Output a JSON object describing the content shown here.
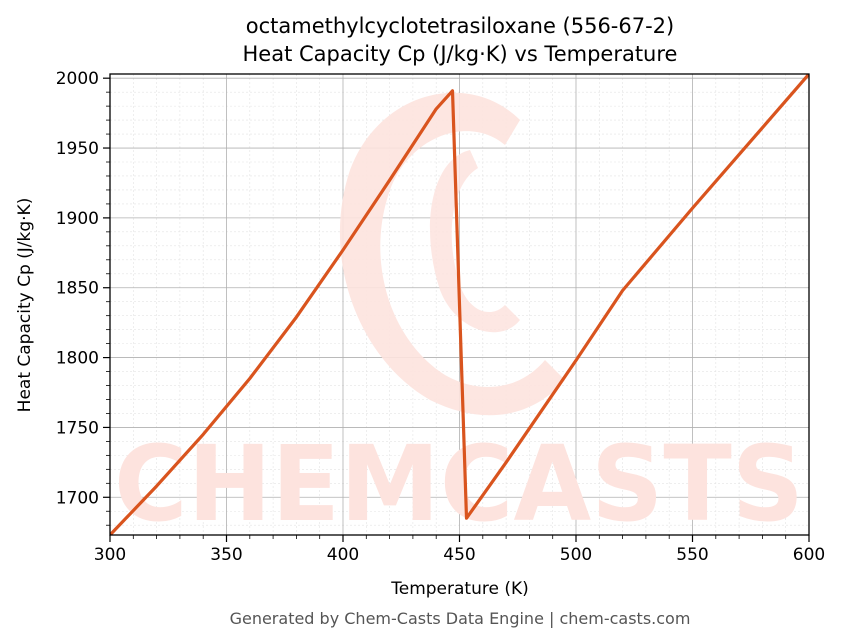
{
  "colors": {
    "line": "#d9541e",
    "grid_major": "#b0b0b0",
    "grid_minor": "#e3e3e3",
    "watermark": "#fde3de",
    "footer": "#555555"
  },
  "watermark": {
    "text": "CHEMCASTS"
  },
  "footer": {
    "text": "Generated by Chem-Casts Data Engine | chem-casts.com"
  },
  "chart_data": {
    "type": "line",
    "title": "octamethylcyclotetrasiloxane (556-67-2)",
    "subtitle": "Heat Capacity Cp (J/kg·K) vs Temperature",
    "xlabel": "Temperature (K)",
    "ylabel": "Heat Capacity Cp (J/kg·K)",
    "xlim": [
      300,
      600
    ],
    "ylim": [
      1673,
      2003
    ],
    "x_ticks": [
      300,
      350,
      400,
      450,
      500,
      550,
      600
    ],
    "y_ticks": [
      1700,
      1750,
      1800,
      1850,
      1900,
      1950,
      2000
    ],
    "grid": true,
    "legend": "none",
    "series": [
      {
        "values_xy": [
          [
            300,
            1673
          ],
          [
            320,
            1708
          ],
          [
            340,
            1745
          ],
          [
            360,
            1785
          ],
          [
            380,
            1829
          ],
          [
            400,
            1877
          ],
          [
            420,
            1927
          ],
          [
            440,
            1978
          ],
          [
            447,
            1991
          ],
          [
            453,
            1685
          ],
          [
            470,
            1725
          ],
          [
            500,
            1798
          ],
          [
            520,
            1848
          ],
          [
            550,
            1907
          ],
          [
            575,
            1955
          ],
          [
            600,
            2003
          ]
        ]
      }
    ]
  }
}
